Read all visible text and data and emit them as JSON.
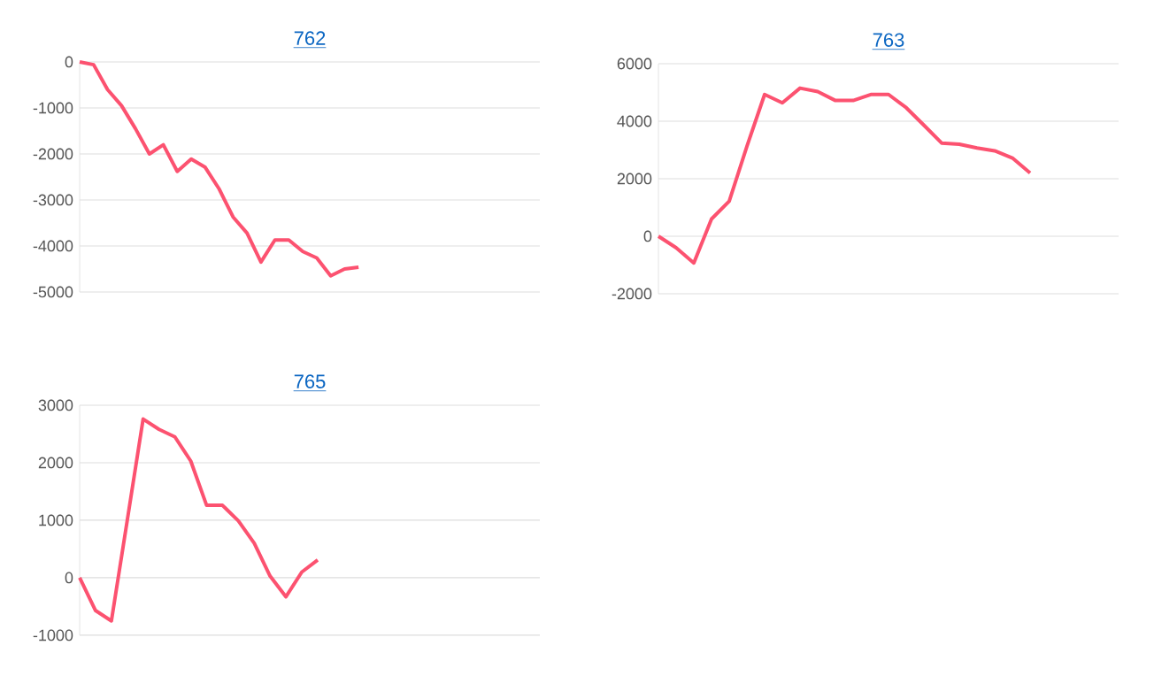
{
  "chart_data": [
    {
      "type": "line",
      "title": "762",
      "categories": [
        null,
        null,
        null,
        null,
        null,
        null,
        null,
        null,
        null,
        null,
        null,
        null,
        null,
        null,
        null,
        null,
        null,
        null,
        null,
        null,
        null,
        null,
        null,
        null,
        null,
        null,
        null,
        null,
        null,
        null,
        null,
        null,
        null,
        null
      ],
      "series": [
        {
          "color": "#fc5270",
          "values": [
            0,
            -60,
            -600,
            -950,
            -1450,
            -2000,
            -1800,
            -2380,
            -2110,
            -2290,
            -2760,
            -3370,
            -3720,
            -4350,
            -3870,
            -3870,
            -4120,
            -4260,
            -4650,
            -4500,
            -4460,
            null,
            null,
            null,
            null,
            null,
            null,
            null,
            null,
            null,
            null,
            null,
            null,
            null
          ]
        }
      ],
      "ylim": [
        -5000,
        0
      ],
      "yticks": [
        -5000,
        -4000,
        -3000,
        -2000,
        -1000,
        0
      ],
      "grid": "y"
    },
    {
      "type": "line",
      "title": "763",
      "categories": [
        null,
        null,
        null,
        null,
        null,
        null,
        null,
        null,
        null,
        null,
        null,
        null,
        null,
        null,
        null,
        null,
        null,
        null,
        null,
        null,
        null,
        null,
        null,
        null,
        null,
        null,
        null
      ],
      "series": [
        {
          "color": "#fc5270",
          "values": [
            0,
            -400,
            -930,
            600,
            1220,
            3130,
            4930,
            4640,
            5150,
            5030,
            4720,
            4720,
            4930,
            4930,
            4470,
            3860,
            3240,
            3200,
            3070,
            2970,
            2720,
            2200,
            null,
            null,
            null,
            null,
            null
          ]
        }
      ],
      "ylim": [
        -2000,
        6000
      ],
      "yticks": [
        -2000,
        0,
        2000,
        4000,
        6000
      ],
      "grid": "y"
    },
    {
      "type": "line",
      "title": "765",
      "categories": [
        null,
        null,
        null,
        null,
        null,
        null,
        null,
        null,
        null,
        null,
        null,
        null,
        null,
        null,
        null,
        null,
        null,
        null,
        null,
        null,
        null,
        null,
        null,
        null,
        null,
        null,
        null,
        null,
        null,
        null
      ],
      "series": [
        {
          "color": "#fc5270",
          "values": [
            0,
            -570,
            -750,
            1000,
            2760,
            2580,
            2450,
            2030,
            1260,
            1260,
            990,
            600,
            30,
            -330,
            100,
            310,
            null,
            null,
            null,
            null,
            null,
            null,
            null,
            null,
            null,
            null,
            null,
            null,
            null,
            null
          ]
        }
      ],
      "ylim": [
        -1000,
        3000
      ],
      "yticks": [
        -1000,
        0,
        1000,
        2000,
        3000
      ],
      "grid": "y"
    }
  ]
}
